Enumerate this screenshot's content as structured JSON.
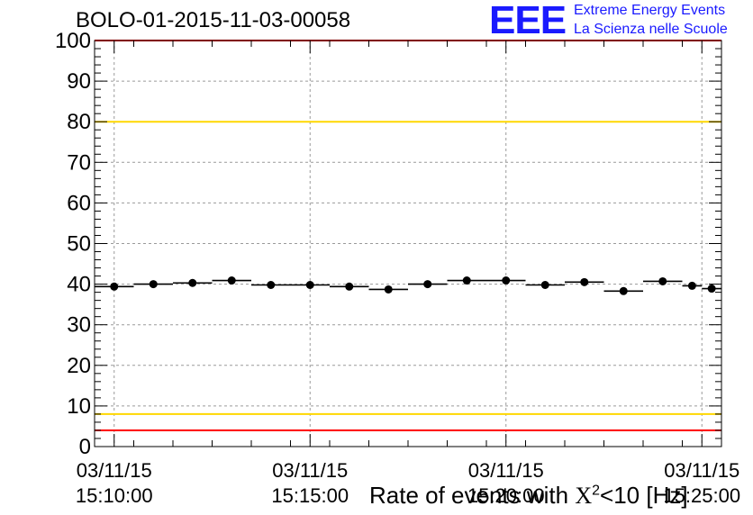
{
  "header": {
    "run_title": "BOLO-01-2015-11-03-00058",
    "logo_text": "EEE",
    "logo_line1": "Extreme Energy Events",
    "logo_line2": "La Scienza nelle Scuole"
  },
  "colors": {
    "axis": "#000000",
    "grid": "#9a9a9a",
    "red_line": "#ff0000",
    "yellow_line": "#ffd700",
    "points": "#000000",
    "logo": "#1a1aff"
  },
  "chart_data": {
    "type": "scatter",
    "title": "BOLO-01-2015-11-03-00058",
    "xlabel_prefix": "Rate of events with ",
    "xlabel_symbol": "X",
    "xlabel_exponent": "2",
    "xlabel_suffix": "<10 [Hz]",
    "ylabel": "",
    "xlim": [
      "15:09:30",
      "15:25:30"
    ],
    "ylim": [
      0,
      100
    ],
    "grid": true,
    "x_ticks": [
      {
        "value": "15:10:00",
        "date": "03/11/15",
        "time": "15:10:00"
      },
      {
        "value": "15:15:00",
        "date": "03/11/15",
        "time": "15:15:00"
      },
      {
        "value": "15:20:00",
        "date": "03/11/15",
        "time": "15:20:00"
      },
      {
        "value": "15:25:00",
        "date": "03/11/15",
        "time": "15:25:00"
      }
    ],
    "y_ticks": [
      0,
      10,
      20,
      30,
      40,
      50,
      60,
      70,
      80,
      90,
      100
    ],
    "reference_lines": [
      {
        "value": 100,
        "color": "#ff0000"
      },
      {
        "value": 80,
        "color": "#ffd700"
      },
      {
        "value": 8,
        "color": "#ffd700"
      },
      {
        "value": 4,
        "color": "#ff0000"
      }
    ],
    "points": [
      {
        "x": "15:09:30",
        "x_end": "15:10:30",
        "y": 39.4
      },
      {
        "x": "15:10:30",
        "x_end": "15:11:30",
        "y": 40.0
      },
      {
        "x": "15:11:30",
        "x_end": "15:12:30",
        "y": 40.3
      },
      {
        "x": "15:12:30",
        "x_end": "15:13:30",
        "y": 40.9
      },
      {
        "x": "15:13:30",
        "x_end": "15:14:30",
        "y": 39.8
      },
      {
        "x": "15:14:30",
        "x_end": "15:15:30",
        "y": 39.8
      },
      {
        "x": "15:15:30",
        "x_end": "15:16:30",
        "y": 39.4
      },
      {
        "x": "15:16:30",
        "x_end": "15:17:30",
        "y": 38.7
      },
      {
        "x": "15:17:30",
        "x_end": "15:18:30",
        "y": 40.0
      },
      {
        "x": "15:18:30",
        "x_end": "15:19:30",
        "y": 40.9
      },
      {
        "x": "15:19:30",
        "x_end": "15:20:30",
        "y": 40.9
      },
      {
        "x": "15:20:30",
        "x_end": "15:21:30",
        "y": 39.8
      },
      {
        "x": "15:21:30",
        "x_end": "15:22:30",
        "y": 40.5
      },
      {
        "x": "15:22:30",
        "x_end": "15:23:30",
        "y": 38.3
      },
      {
        "x": "15:23:30",
        "x_end": "15:24:30",
        "y": 40.7
      },
      {
        "x": "15:24:30",
        "x_end": "15:25:00",
        "y": 39.6
      },
      {
        "x": "15:25:00",
        "x_end": "15:25:30",
        "y": 38.9
      }
    ]
  }
}
